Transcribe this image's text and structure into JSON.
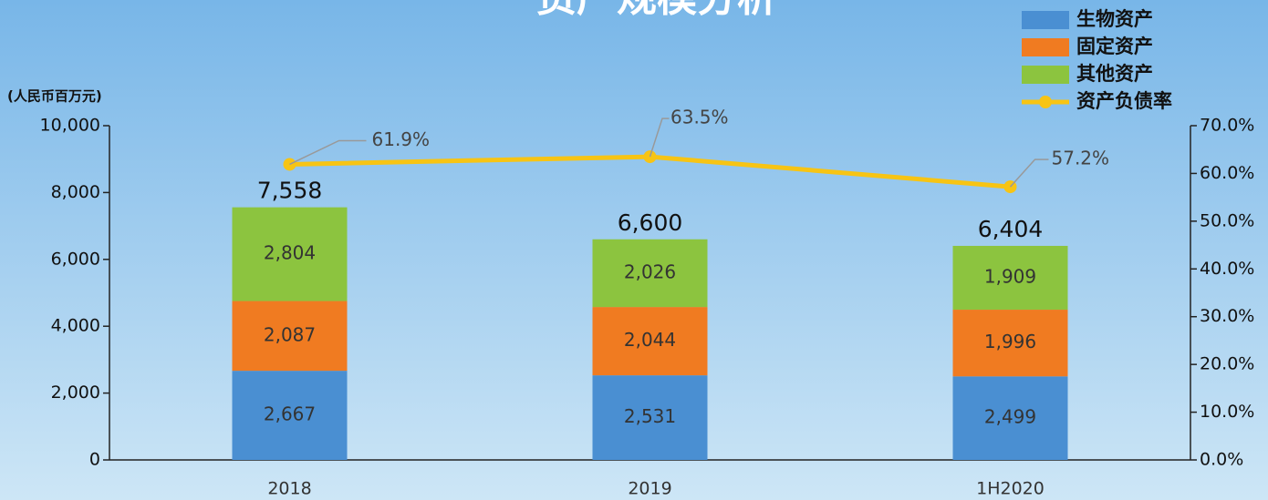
{
  "chart_data": {
    "type": "bar",
    "title": "资产规模分析",
    "y_axis_label": "(人民币百万元)",
    "categories": [
      "2018",
      "2019",
      "1H2020"
    ],
    "series": [
      {
        "name": "生物资产",
        "color": "#4a8fd2",
        "values": [
          2667,
          2531,
          2499
        ],
        "value_labels": [
          "2,667",
          "2,531",
          "2,499"
        ]
      },
      {
        "name": "固定资产",
        "color": "#f07b21",
        "values": [
          2087,
          2044,
          1996
        ],
        "value_labels": [
          "2,087",
          "2,044",
          "1,996"
        ]
      },
      {
        "name": "其他资产",
        "color": "#8cc43f",
        "values": [
          2804,
          2026,
          1909
        ],
        "value_labels": [
          "2,804",
          "2,026",
          "1,909"
        ]
      },
      {
        "name": "资产负债率",
        "type": "line",
        "axis": "y2",
        "color": "#f7c414",
        "values": [
          61.9,
          63.5,
          57.2
        ],
        "value_labels": [
          "61.9%",
          "63.5%",
          "57.2%"
        ]
      }
    ],
    "totals": {
      "values": [
        7558,
        6600,
        6404
      ],
      "value_labels": [
        "7,558",
        "6,600",
        "6,404"
      ]
    },
    "ylim": [
      0,
      10000
    ],
    "yticks": [
      0,
      {
        "value": 2000,
        "label": "2,000"
      },
      {
        "value": 4000,
        "label": "4,000"
      },
      {
        "value": 6000,
        "label": "6,000"
      },
      {
        "value": 8000,
        "label": "8,000"
      },
      {
        "value": 10000,
        "label": "10,000"
      }
    ],
    "y2lim": [
      0,
      70
    ],
    "y2ticks": [
      {
        "value": 0,
        "label": "0.0%"
      },
      {
        "value": 10,
        "label": "10.0%"
      },
      {
        "value": 20,
        "label": "20.0%"
      },
      {
        "value": 30,
        "label": "30.0%"
      },
      {
        "value": 40,
        "label": "40.0%"
      },
      {
        "value": 50,
        "label": "50.0%"
      },
      {
        "value": 60,
        "label": "60.0%"
      },
      {
        "value": 70,
        "label": "70.0%"
      }
    ],
    "legend": "top-right"
  }
}
